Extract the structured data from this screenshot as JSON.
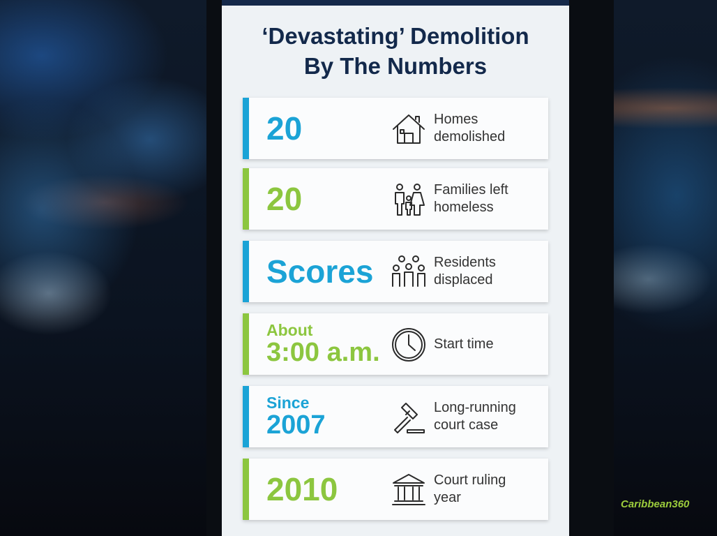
{
  "infographic": {
    "title": [
      "‘Devastating’ Demolition",
      "By The Numbers"
    ],
    "cards": [
      {
        "value": "20",
        "label": [
          "Homes",
          "demolished"
        ]
      },
      {
        "value": "20",
        "label": [
          "Families left",
          "homeless"
        ]
      },
      {
        "value": "Scores",
        "label": [
          "Residents",
          "displaced"
        ]
      },
      {
        "prefix": "About",
        "value": "3:00 a.m.",
        "label": [
          "Start time"
        ]
      },
      {
        "prefix": "Since",
        "value": "2007",
        "label": [
          "Long-running",
          "court case"
        ]
      },
      {
        "value": "2010",
        "label": [
          "Court ruling",
          "year"
        ]
      }
    ],
    "logo": "Caribbean360"
  }
}
